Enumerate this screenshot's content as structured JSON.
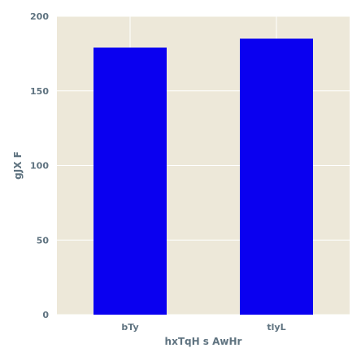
{
  "chart_data": {
    "type": "bar",
    "title": "",
    "xlabel": "hxTqH s  AwHr",
    "ylabel": "gJX F",
    "categories": [
      "bTy",
      "tlyL"
    ],
    "values": [
      179,
      185
    ],
    "ylim": [
      0,
      200
    ],
    "yticks": [
      0,
      50,
      100,
      150,
      200
    ],
    "grid": true,
    "legend": "none",
    "colors": {
      "bar": "#0a00f0",
      "plot_background": "#ede8d9",
      "grid": "#ffffff",
      "text": "#5f7380"
    }
  }
}
